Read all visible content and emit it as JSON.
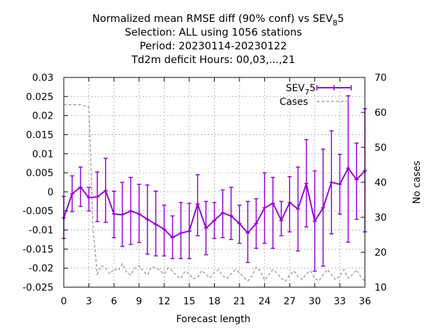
{
  "chart_data": {
    "type": "line",
    "title_lines": [
      "Normalized mean RMSE diff (90% conf) vs SEV",
      "Selection: ALL using  1056 stations",
      "Period: 20230114-20230122",
      "Td2m deficit   Hours:  00,03,...,21"
    ],
    "title_ref_base": "SEV",
    "title_ref_sub": "8",
    "title_ref_suffix": "5",
    "xlabel": "Forecast length",
    "ylabel_right": "No cases",
    "xlim": [
      0,
      36
    ],
    "ylim": [
      -0.025,
      0.03
    ],
    "y2lim": [
      10,
      70
    ],
    "x_ticks": [
      0,
      3,
      6,
      9,
      12,
      15,
      18,
      21,
      24,
      27,
      30,
      33,
      36
    ],
    "y_ticks": [
      -0.025,
      -0.02,
      -0.015,
      -0.01,
      -0.005,
      0,
      0.005,
      0.01,
      0.015,
      0.02,
      0.025,
      0.03
    ],
    "y_tick_labels": [
      "-0.025",
      "-0.02",
      "-0.015",
      "-0.01",
      "-0.005",
      "0",
      "0.005",
      "0.01",
      "0.015",
      "0.02",
      "0.025",
      "0.03"
    ],
    "y2_ticks": [
      10,
      20,
      30,
      40,
      50,
      60,
      70
    ],
    "grid": true,
    "legend_position": "top-right",
    "series": [
      {
        "name_base": "SEV",
        "name_sub": "7",
        "name_suffix": "5",
        "color": "#9400d3",
        "style": "line-errorbars",
        "x": [
          0,
          1,
          2,
          3,
          4,
          5,
          6,
          7,
          8,
          9,
          10,
          11,
          12,
          13,
          14,
          15,
          16,
          17,
          18,
          19,
          20,
          21,
          22,
          23,
          24,
          25,
          26,
          27,
          28,
          29,
          30,
          31,
          32,
          33,
          34,
          35,
          36
        ],
        "y": [
          -0.0068,
          -0.0005,
          0.0012,
          -0.0015,
          -0.0013,
          0.0003,
          -0.0058,
          -0.006,
          -0.005,
          -0.0058,
          -0.0072,
          -0.0085,
          -0.0098,
          -0.012,
          -0.0108,
          -0.0103,
          -0.0032,
          -0.0095,
          -0.0075,
          -0.0055,
          -0.0063,
          -0.0083,
          -0.0108,
          -0.0083,
          -0.0042,
          -0.003,
          -0.0075,
          -0.0028,
          -0.0045,
          0.0022,
          -0.0077,
          -0.0042,
          0.0025,
          0.002,
          0.0062,
          0.0032,
          0.0055
        ],
        "lower": [
          -0.0122,
          -0.0052,
          -0.0038,
          -0.005,
          -0.0078,
          -0.008,
          -0.012,
          -0.0143,
          -0.0138,
          -0.0133,
          -0.0163,
          -0.0168,
          -0.0168,
          -0.0175,
          -0.0175,
          -0.0175,
          -0.0115,
          -0.0165,
          -0.0122,
          -0.012,
          -0.0125,
          -0.0135,
          -0.0185,
          -0.0148,
          -0.0135,
          -0.0148,
          -0.0115,
          -0.0105,
          -0.0155,
          -0.0092,
          -0.0208,
          -0.0195,
          -0.011,
          -0.0058,
          -0.0132,
          -0.0072,
          -0.0105
        ],
        "upper": [
          -0.0012,
          0.0042,
          0.0065,
          0.0012,
          0.0052,
          0.0088,
          0.0002,
          0.0025,
          0.0038,
          0.002,
          0.0018,
          0.0002,
          -0.0035,
          -0.0063,
          -0.0028,
          -0.003,
          0.0045,
          -0.0025,
          -0.0028,
          0.0005,
          0.0012,
          -0.0035,
          -0.0025,
          -0.0018,
          0.005,
          0.0038,
          -0.0025,
          0.004,
          0.0065,
          0.0137,
          0.0055,
          0.0112,
          0.016,
          0.0098,
          0.0252,
          0.0128,
          0.0218
        ]
      },
      {
        "name": "Cases",
        "color": "#a0a0a0",
        "style": "dashed",
        "axis": "right",
        "x": [
          0,
          1,
          2,
          3,
          3.5,
          4,
          4.5,
          5,
          5.5,
          6,
          6.5,
          7,
          7.5,
          8,
          8.5,
          9,
          9.5,
          10,
          10.5,
          11,
          11.5,
          12,
          12.5,
          13,
          13.5,
          14,
          14.5,
          15,
          15.5,
          16,
          16.5,
          17,
          17.5,
          18,
          18.5,
          19,
          19.5,
          20,
          20.5,
          21,
          21.5,
          22,
          22.5,
          23,
          23.5,
          24,
          24.5,
          25,
          25.5,
          26,
          26.5,
          27,
          27.5,
          28,
          28.5,
          29,
          29.5,
          30,
          30.5,
          31,
          31.5,
          32,
          32.5,
          33,
          33.5,
          34,
          34.5,
          35,
          35.5,
          36
        ],
        "y": [
          62.2,
          62.2,
          62.2,
          61.5,
          26.5,
          13.8,
          16.2,
          15.5,
          13.8,
          15.2,
          14.7,
          16.7,
          14.2,
          13.5,
          15.5,
          16.2,
          14.6,
          13.5,
          15.8,
          15.5,
          14.8,
          13.7,
          15.5,
          14.6,
          13.2,
          12.5,
          14.6,
          13.8,
          12.4,
          12.8,
          14.8,
          13.6,
          12.7,
          14.2,
          15.0,
          13.3,
          12.5,
          13.8,
          15.0,
          14.2,
          12.8,
          11.8,
          13.2,
          15.7,
          14.6,
          12.0,
          13.6,
          15.0,
          14.0,
          12.5,
          11.7,
          13.5,
          14.7,
          13.0,
          12.2,
          13.8,
          14.7,
          12.6,
          11.8,
          13.5,
          15.1,
          13.6,
          12.1,
          13.2,
          15.0,
          12.6,
          13.6,
          15.0,
          13.0,
          11.7
        ]
      }
    ]
  }
}
